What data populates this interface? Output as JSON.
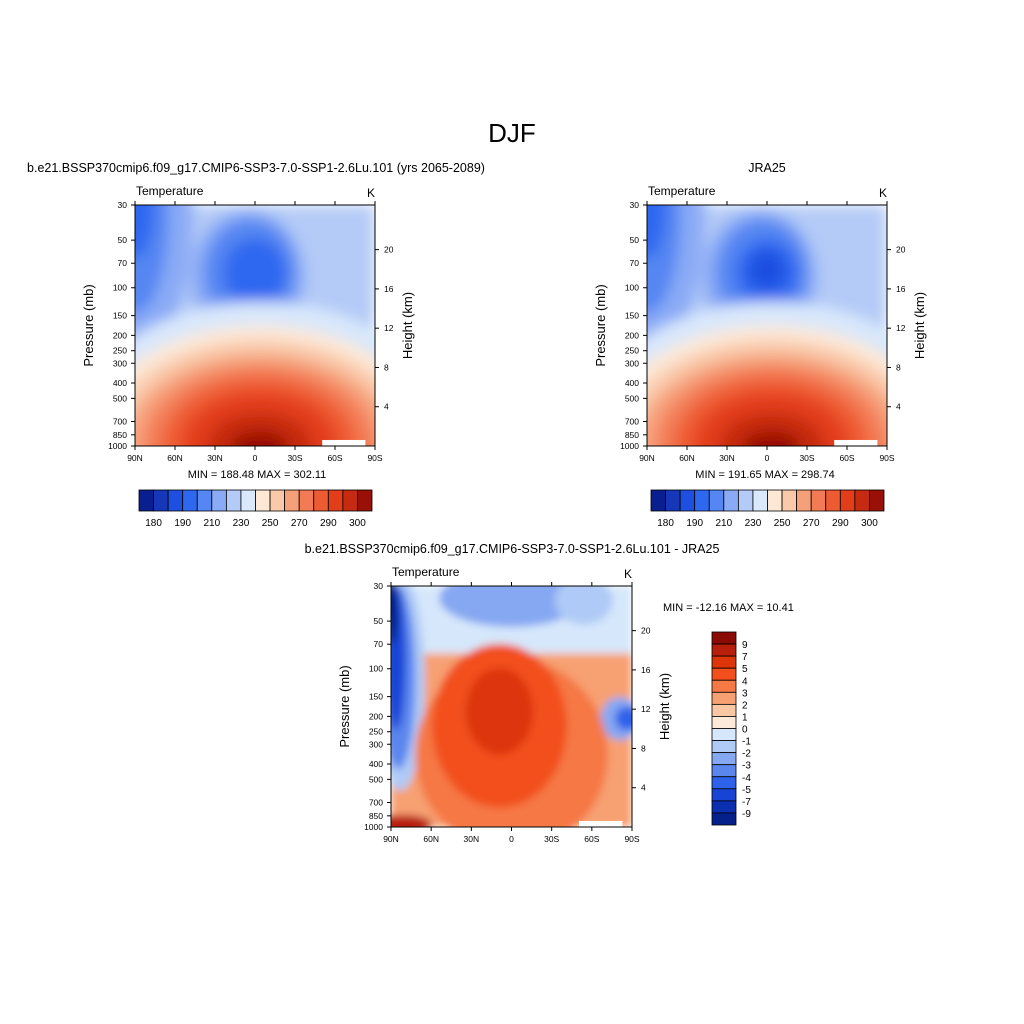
{
  "figure": {
    "title": "DJF",
    "legend_ticks_abs": [
      "180",
      "190",
      "210",
      "230",
      "250",
      "270",
      "290",
      "300"
    ],
    "legend_ticks_diff": [
      "9",
      "7",
      "5",
      "4",
      "3",
      "2",
      "1",
      "0",
      "-1",
      "-2",
      "-3",
      "-4",
      "-5",
      "-7",
      "-9"
    ]
  },
  "colors": {
    "abs_scale": [
      "#0a1f8f",
      "#1638b8",
      "#1f4fe0",
      "#2f68f0",
      "#5586f2",
      "#8aaaf5",
      "#b4cbf7",
      "#d9e8fb",
      "#fde8d6",
      "#f9c9aa",
      "#f6a07a",
      "#f27b55",
      "#ee5a32",
      "#e23e1a",
      "#c62a10",
      "#981006"
    ],
    "diff_scale": [
      "#8c0a05",
      "#b81f0a",
      "#dd3508",
      "#f24f1c",
      "#f57845",
      "#f7a072",
      "#fac7a4",
      "#fde9d8",
      "#d6e7fb",
      "#afcaf6",
      "#86a8f2",
      "#5a86ee",
      "#2f62ea",
      "#1844d6",
      "#0c2eb0",
      "#05208a"
    ]
  },
  "chart_data": [
    {
      "type": "heatmap",
      "subtitle": "b.e21.BSSP370cmip6.f09_g17.CMIP6-SSP3-7.0-SSP1-2.6Lu.101 (yrs 2065-2089)",
      "panel_label_left": "Temperature",
      "panel_label_right": "K",
      "variable": "Temperature",
      "units": "K",
      "xlabel": "",
      "ylabel": "Pressure (mb)",
      "y2label": "Height (km)",
      "x_ticks": [
        "90N",
        "60N",
        "30N",
        "0",
        "30S",
        "60S",
        "90S"
      ],
      "y_ticks": [
        "30",
        "50",
        "70",
        "100",
        "150",
        "200",
        "250",
        "300",
        "400",
        "500",
        "700",
        "850",
        "1000"
      ],
      "y2_ticks": [
        "20",
        "16",
        "12",
        "8",
        "4"
      ],
      "stats": "MIN = 188.48  MAX = 302.11",
      "min": 188.48,
      "max": 302.11,
      "colorbar_levels": [
        180,
        185,
        190,
        200,
        210,
        220,
        230,
        240,
        250,
        260,
        270,
        280,
        290,
        295,
        300
      ]
    },
    {
      "type": "heatmap",
      "subtitle": "JRA25",
      "panel_label_left": "Temperature",
      "panel_label_right": "K",
      "variable": "Temperature",
      "units": "K",
      "xlabel": "",
      "ylabel": "Pressure (mb)",
      "y2label": "Height (km)",
      "x_ticks": [
        "90N",
        "60N",
        "30N",
        "0",
        "30S",
        "60S",
        "90S"
      ],
      "y_ticks": [
        "30",
        "50",
        "70",
        "100",
        "150",
        "200",
        "250",
        "300",
        "400",
        "500",
        "700",
        "850",
        "1000"
      ],
      "y2_ticks": [
        "20",
        "16",
        "12",
        "8",
        "4"
      ],
      "stats": "MIN = 191.65  MAX = 298.74",
      "min": 191.65,
      "max": 298.74,
      "colorbar_levels": [
        180,
        185,
        190,
        200,
        210,
        220,
        230,
        240,
        250,
        260,
        270,
        280,
        290,
        295,
        300
      ]
    },
    {
      "type": "heatmap",
      "subtitle": "b.e21.BSSP370cmip6.f09_g17.CMIP6-SSP3-7.0-SSP1-2.6Lu.101 - JRA25",
      "panel_label_left": "Temperature",
      "panel_label_right": "K",
      "variable": "Temperature difference",
      "units": "K",
      "xlabel": "",
      "ylabel": "Pressure (mb)",
      "y2label": "Height (km)",
      "x_ticks": [
        "90N",
        "60N",
        "30N",
        "0",
        "30S",
        "60S",
        "90S"
      ],
      "y_ticks": [
        "30",
        "50",
        "70",
        "100",
        "150",
        "200",
        "250",
        "300",
        "400",
        "500",
        "700",
        "850",
        "1000"
      ],
      "y2_ticks": [
        "20",
        "16",
        "12",
        "8",
        "4"
      ],
      "stats": "MIN = -12.16  MAX =  10.41",
      "min": -12.16,
      "max": 10.41,
      "colorbar_levels": [
        9,
        7,
        5,
        4,
        3,
        2,
        1,
        0,
        -1,
        -2,
        -3,
        -4,
        -5,
        -7,
        -9
      ]
    }
  ]
}
